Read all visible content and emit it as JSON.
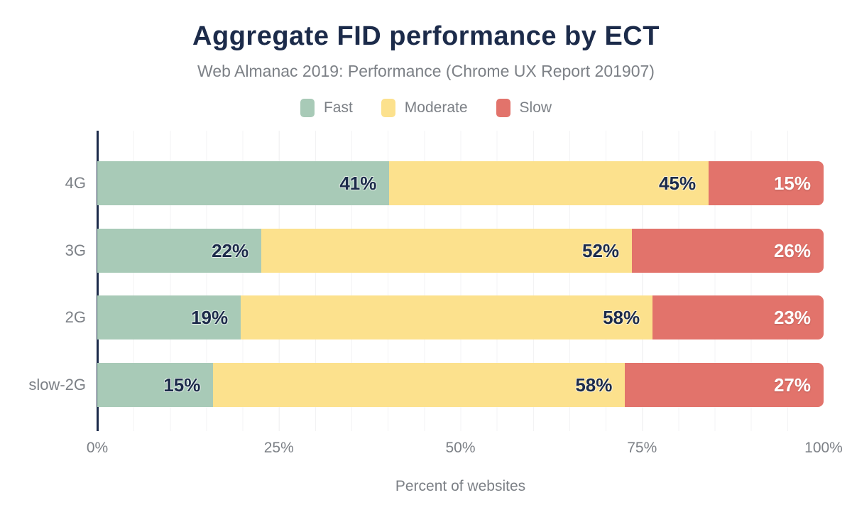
{
  "chart_data": {
    "type": "bar",
    "orientation": "horizontal",
    "stacked": true,
    "title": "Aggregate FID performance by ECT",
    "subtitle": "Web Almanac 2019: Performance (Chrome UX Report 201907)",
    "xlabel": "Percent of websites",
    "xlim": [
      0,
      100
    ],
    "x_ticks": [
      "0%",
      "25%",
      "50%",
      "75%",
      "100%"
    ],
    "grid": {
      "vertical_minor_step_percent": 5,
      "horizontal": false
    },
    "legend_position": "top",
    "categories": [
      "4G",
      "3G",
      "2G",
      "slow-2G"
    ],
    "series": [
      {
        "name": "Fast",
        "color": "#a8cab7",
        "values": [
          41,
          22,
          19,
          15
        ]
      },
      {
        "name": "Moderate",
        "color": "#fce18d",
        "values": [
          45,
          52,
          58,
          58
        ]
      },
      {
        "name": "Slow",
        "color": "#e2736b",
        "values": [
          15,
          26,
          23,
          27
        ]
      }
    ],
    "rows": [
      {
        "category": "4G",
        "segments": [
          {
            "series": "Fast",
            "value": 41,
            "label": "41%"
          },
          {
            "series": "Moderate",
            "value": 45,
            "label": "45%"
          },
          {
            "series": "Slow",
            "value": 15,
            "label": "15%"
          }
        ]
      },
      {
        "category": "3G",
        "segments": [
          {
            "series": "Fast",
            "value": 22,
            "label": "22%"
          },
          {
            "series": "Moderate",
            "value": 52,
            "label": "52%"
          },
          {
            "series": "Slow",
            "value": 26,
            "label": "26%"
          }
        ]
      },
      {
        "category": "2G",
        "segments": [
          {
            "series": "Fast",
            "value": 19,
            "label": "19%"
          },
          {
            "series": "Moderate",
            "value": 58,
            "label": "58%"
          },
          {
            "series": "Slow",
            "value": 23,
            "label": "23%"
          }
        ]
      },
      {
        "category": "slow-2G",
        "segments": [
          {
            "series": "Fast",
            "value": 15,
            "label": "15%"
          },
          {
            "series": "Moderate",
            "value": 58,
            "label": "58%"
          },
          {
            "series": "Slow",
            "value": 27,
            "label": "27%"
          }
        ]
      }
    ]
  },
  "colors": {
    "title_text": "#1c2b4a",
    "secondary_text": "#7c8086",
    "axis_line": "#1c2b4a",
    "gridline": "#f3f3f4",
    "value_label_dark": "#1c2b4a",
    "value_label_light": "#ffffff"
  }
}
